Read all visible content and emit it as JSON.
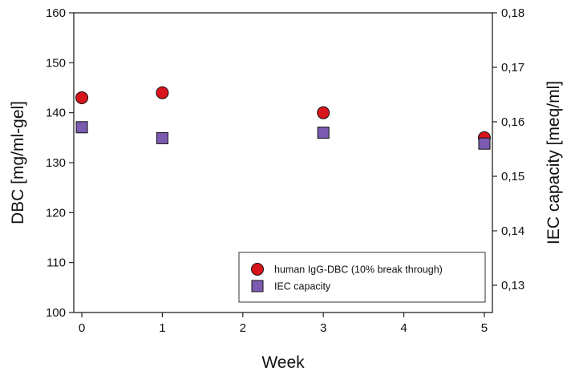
{
  "chart_data": {
    "type": "scatter",
    "xlabel": "Week",
    "ylabel": "DBC [mg/ml-gel]",
    "y2label": "IEC capacity [meq/ml]",
    "xlim": [
      -0.1,
      5.1
    ],
    "ylim": [
      100,
      160
    ],
    "y2lim": [
      0.125,
      0.18
    ],
    "x_ticks": [
      "0",
      "1",
      "2",
      "3",
      "4",
      "5"
    ],
    "y_ticks": [
      "100",
      "110",
      "120",
      "130",
      "140",
      "150",
      "160"
    ],
    "y2_ticks": [
      "0,13",
      "0,14",
      "0,15",
      "0,16",
      "0,17",
      "0,18"
    ],
    "grid": false,
    "legend_position": "bottom-right",
    "series": [
      {
        "name": "human IgG-DBC (10% break through)",
        "axis": "left",
        "marker": "circle",
        "color": "#d8141c",
        "x": [
          0,
          1,
          3,
          5
        ],
        "y": [
          143,
          144,
          140,
          135
        ]
      },
      {
        "name": "IEC capacity",
        "axis": "right",
        "marker": "square",
        "color": "#7b5bb0",
        "x": [
          0,
          1,
          3,
          5
        ],
        "y": [
          0.159,
          0.157,
          0.158,
          0.156
        ]
      }
    ]
  }
}
